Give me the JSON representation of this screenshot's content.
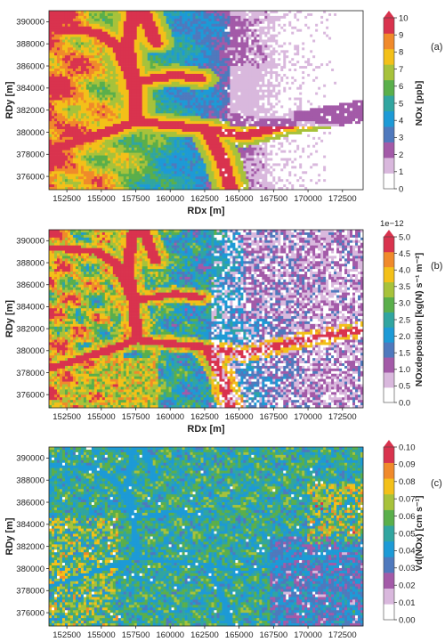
{
  "chart_data": [
    {
      "panel": "(a)",
      "type": "heatmap",
      "xlabel": "RDx [m]",
      "ylabel": "RDy [m]",
      "x_ticks": [
        152500,
        155000,
        157500,
        160000,
        162500,
        165000,
        167500,
        170000,
        172500
      ],
      "y_ticks": [
        376000,
        378000,
        380000,
        382000,
        384000,
        386000,
        388000,
        390000
      ],
      "xlim": [
        151200,
        174000
      ],
      "ylim": [
        374800,
        391000
      ],
      "colorbar": {
        "label": "NOx [ppb]",
        "multiplier": "",
        "ticks": [
          "0",
          "1",
          "2",
          "3",
          "4",
          "5",
          "6",
          "7",
          "8",
          "9",
          "10"
        ],
        "levels": [
          0,
          1,
          2,
          3,
          4,
          5,
          6,
          7,
          8,
          9,
          10
        ],
        "colors": [
          "#ffffff",
          "#d9b8dd",
          "#a35aa8",
          "#4f79bd",
          "#1d9ad6",
          "#31a5a0",
          "#5aaf4b",
          "#a7c23b",
          "#f3c019",
          "#f08a2b",
          "#d9334e"
        ]
      },
      "pattern": "no2"
    },
    {
      "panel": "(b)",
      "type": "heatmap",
      "xlabel": "RDx [m]",
      "ylabel": "RDy [m]",
      "x_ticks": [
        152500,
        155000,
        157500,
        160000,
        162500,
        165000,
        167500,
        170000,
        172500
      ],
      "y_ticks": [
        376000,
        378000,
        380000,
        382000,
        384000,
        386000,
        388000,
        390000
      ],
      "xlim": [
        151200,
        174000
      ],
      "ylim": [
        374800,
        391000
      ],
      "colorbar": {
        "label": "NOxdeposition [kg(N) s⁻¹ m⁻²]",
        "multiplier": "1e−12",
        "ticks": [
          "0.0",
          "0.5",
          "1.0",
          "1.5",
          "2.0",
          "2.5",
          "3.0",
          "3.5",
          "4.0",
          "4.5",
          "5.0"
        ],
        "levels": [
          0,
          0.5,
          1,
          1.5,
          2,
          2.5,
          3,
          3.5,
          4,
          4.5,
          5
        ],
        "colors": [
          "#ffffff",
          "#d9b8dd",
          "#a35aa8",
          "#4f79bd",
          "#1d9ad6",
          "#31a5a0",
          "#5aaf4b",
          "#a7c23b",
          "#f3c019",
          "#f08a2b",
          "#d9334e"
        ]
      },
      "pattern": "deposition"
    },
    {
      "panel": "(c)",
      "type": "heatmap",
      "xlabel": "RDx [m]",
      "ylabel": "RDy [m]",
      "x_ticks": [
        152500,
        155000,
        157500,
        160000,
        162500,
        165000,
        167500,
        170000,
        172500
      ],
      "y_ticks": [
        376000,
        378000,
        380000,
        382000,
        384000,
        386000,
        388000,
        390000
      ],
      "xlim": [
        151200,
        174000
      ],
      "ylim": [
        374800,
        391000
      ],
      "colorbar": {
        "label": "Vd(NOx) [cm s⁻¹]",
        "multiplier": "",
        "ticks": [
          "0.00",
          "0.01",
          "0.02",
          "0.03",
          "0.04",
          "0.05",
          "0.06",
          "0.07",
          "0.08",
          "0.09",
          "0.10"
        ],
        "levels": [
          0,
          0.01,
          0.02,
          0.03,
          0.04,
          0.05,
          0.06,
          0.07,
          0.08,
          0.09,
          0.1
        ],
        "colors": [
          "#ffffff",
          "#d9b8dd",
          "#a35aa8",
          "#4f79bd",
          "#1d9ad6",
          "#31a5a0",
          "#5aaf4b",
          "#a7c23b",
          "#f3c019",
          "#f08a2b",
          "#d9334e"
        ]
      },
      "pattern": "velocity"
    }
  ]
}
